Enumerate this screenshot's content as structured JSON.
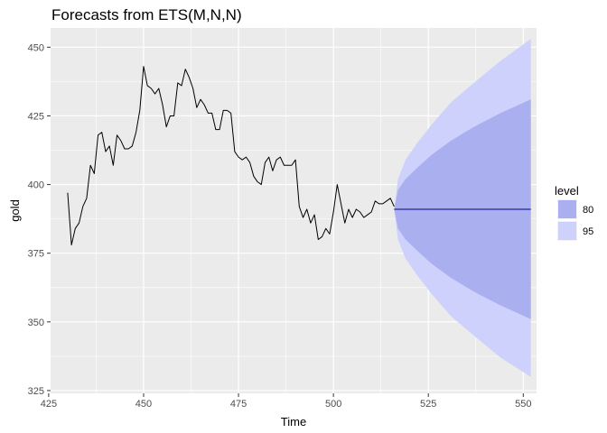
{
  "chart_data": {
    "type": "line",
    "title": "Forecasts from ETS(M,N,N)",
    "xlabel": "Time",
    "ylabel": "gold",
    "xlim": [
      425.5,
      553.5
    ],
    "ylim": [
      324,
      457
    ],
    "x_ticks": [
      425,
      450,
      475,
      500,
      525,
      550
    ],
    "y_ticks": [
      325,
      350,
      375,
      400,
      425,
      450
    ],
    "grid": true,
    "legend_placement": "right",
    "legend_title": "level",
    "colors": {
      "panel": "#ebebeb",
      "grid": "#ffffff",
      "line": "#000000",
      "forecast": "#00008b",
      "band80": "#aaaff0",
      "band95": "#cdd1fb"
    },
    "history": {
      "x": [
        430,
        431,
        432,
        433,
        434,
        435,
        436,
        437,
        438,
        439,
        440,
        441,
        442,
        443,
        444,
        445,
        446,
        447,
        448,
        449,
        450,
        451,
        452,
        453,
        454,
        455,
        456,
        457,
        458,
        459,
        460,
        461,
        462,
        463,
        464,
        465,
        466,
        467,
        468,
        469,
        470,
        471,
        472,
        473,
        474,
        475,
        476,
        477,
        478,
        479,
        480,
        481,
        482,
        483,
        484,
        485,
        486,
        487,
        488,
        489,
        490,
        491,
        492,
        493,
        494,
        495,
        496,
        497,
        498,
        499,
        500,
        501,
        502,
        503,
        504,
        505,
        506,
        507,
        508,
        509,
        510,
        511,
        512,
        513,
        514,
        515,
        516
      ],
      "y": [
        397,
        378,
        384,
        386,
        392,
        395,
        407,
        404,
        418,
        419,
        412,
        414,
        407,
        418,
        416,
        413,
        413,
        414,
        419,
        427,
        443,
        436,
        435,
        433,
        435,
        429,
        421,
        425,
        425,
        437,
        436,
        442,
        439,
        435,
        428,
        431,
        429,
        426,
        426,
        420,
        420,
        427,
        427,
        426,
        412,
        410,
        409,
        410,
        408,
        403,
        401,
        400,
        408,
        410,
        405,
        409,
        410,
        407,
        407,
        407,
        409,
        392,
        388,
        391,
        386,
        389,
        380,
        381,
        384,
        382,
        390,
        400,
        393,
        386,
        391,
        388,
        391,
        390,
        388,
        389,
        390,
        394,
        393,
        393,
        394,
        395,
        392
      ]
    },
    "forecast": {
      "x": [
        516,
        517,
        519,
        522,
        526,
        531,
        537,
        544,
        552
      ],
      "mean": 391,
      "lo80": [
        391,
        384,
        380,
        376,
        371,
        366,
        361,
        356,
        351
      ],
      "hi80": [
        391,
        398,
        402,
        406,
        411,
        416,
        421,
        426,
        431
      ],
      "lo95": [
        391,
        380,
        373,
        367,
        360,
        352,
        345,
        337,
        330
      ],
      "hi95": [
        391,
        402,
        409,
        415,
        422,
        430,
        437,
        445,
        453
      ]
    },
    "legend": [
      {
        "label": "80",
        "color": "#aaaff0"
      },
      {
        "label": "95",
        "color": "#cdd1fb"
      }
    ]
  }
}
